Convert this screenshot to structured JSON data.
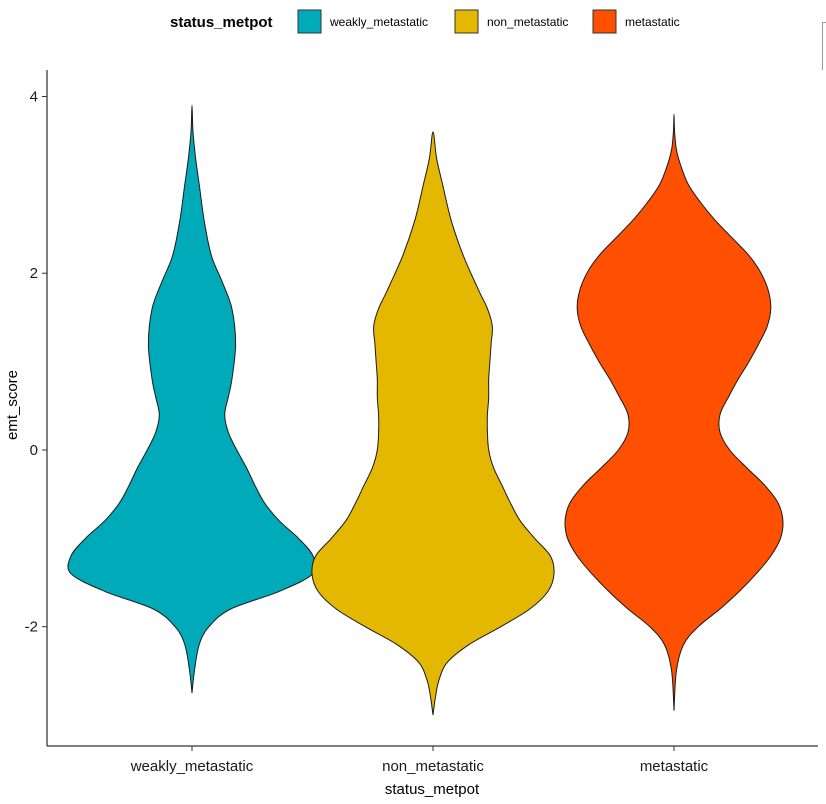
{
  "chart_data": {
    "type": "violin",
    "xlabel": "status_metpot",
    "ylabel": "emt_score",
    "ylim": [
      -3.35,
      4.3
    ],
    "yticks": [
      -2,
      0,
      2,
      4
    ],
    "categories": [
      "weakly_metastatic",
      "non_metastatic",
      "metastatic"
    ],
    "legend": {
      "title": "status_metpot",
      "position": "top",
      "items": [
        {
          "label": "weakly_metastatic",
          "color": "#00AAB9"
        },
        {
          "label": "non_metastatic",
          "color": "#E4B800"
        },
        {
          "label": "metastatic",
          "color": "#FF4F00"
        }
      ]
    },
    "grid": false,
    "series": [
      {
        "name": "weakly_metastatic",
        "color": "#00AAB9",
        "range": [
          -2.75,
          3.9
        ],
        "density_halfwidth": [
          [
            -2.75,
            0.0
          ],
          [
            -2.5,
            0.02
          ],
          [
            -2.2,
            0.06
          ],
          [
            -2.0,
            0.14
          ],
          [
            -1.8,
            0.32
          ],
          [
            -1.6,
            0.72
          ],
          [
            -1.4,
            1.0
          ],
          [
            -1.2,
            1.0
          ],
          [
            -1.0,
            0.88
          ],
          [
            -0.8,
            0.72
          ],
          [
            -0.6,
            0.6
          ],
          [
            -0.4,
            0.52
          ],
          [
            -0.2,
            0.45
          ],
          [
            0.0,
            0.37
          ],
          [
            0.2,
            0.3
          ],
          [
            0.4,
            0.27
          ],
          [
            0.6,
            0.3
          ],
          [
            0.8,
            0.33
          ],
          [
            1.2,
            0.36
          ],
          [
            1.6,
            0.33
          ],
          [
            1.9,
            0.25
          ],
          [
            2.2,
            0.16
          ],
          [
            2.6,
            0.1
          ],
          [
            3.0,
            0.06
          ],
          [
            3.3,
            0.03
          ],
          [
            3.6,
            0.008
          ],
          [
            3.9,
            0.0
          ]
        ]
      },
      {
        "name": "non_metastatic",
        "color": "#E4B800",
        "range": [
          -3.0,
          3.6
        ],
        "density_halfwidth": [
          [
            -3.0,
            0.0
          ],
          [
            -2.8,
            0.02
          ],
          [
            -2.6,
            0.05
          ],
          [
            -2.4,
            0.12
          ],
          [
            -2.2,
            0.3
          ],
          [
            -2.0,
            0.56
          ],
          [
            -1.8,
            0.8
          ],
          [
            -1.6,
            0.95
          ],
          [
            -1.4,
            1.0
          ],
          [
            -1.2,
            0.97
          ],
          [
            -1.0,
            0.84
          ],
          [
            -0.8,
            0.72
          ],
          [
            -0.6,
            0.64
          ],
          [
            -0.4,
            0.57
          ],
          [
            -0.2,
            0.5
          ],
          [
            0.0,
            0.46
          ],
          [
            0.2,
            0.45
          ],
          [
            0.4,
            0.45
          ],
          [
            0.6,
            0.46
          ],
          [
            0.8,
            0.46
          ],
          [
            1.0,
            0.47
          ],
          [
            1.2,
            0.48
          ],
          [
            1.4,
            0.49
          ],
          [
            1.6,
            0.45
          ],
          [
            1.8,
            0.38
          ],
          [
            2.2,
            0.25
          ],
          [
            2.6,
            0.15
          ],
          [
            3.0,
            0.08
          ],
          [
            3.3,
            0.03
          ],
          [
            3.6,
            0.0
          ]
        ]
      },
      {
        "name": "metastatic",
        "color": "#FF4F00",
        "range": [
          -2.95,
          3.8
        ],
        "density_halfwidth": [
          [
            -2.95,
            0.0
          ],
          [
            -2.5,
            0.02
          ],
          [
            -2.2,
            0.08
          ],
          [
            -2.0,
            0.2
          ],
          [
            -1.8,
            0.38
          ],
          [
            -1.6,
            0.54
          ],
          [
            -1.4,
            0.68
          ],
          [
            -1.2,
            0.8
          ],
          [
            -1.0,
            0.88
          ],
          [
            -0.8,
            0.9
          ],
          [
            -0.6,
            0.86
          ],
          [
            -0.4,
            0.75
          ],
          [
            -0.2,
            0.6
          ],
          [
            0.0,
            0.46
          ],
          [
            0.2,
            0.38
          ],
          [
            0.4,
            0.38
          ],
          [
            0.6,
            0.45
          ],
          [
            0.8,
            0.53
          ],
          [
            1.0,
            0.62
          ],
          [
            1.2,
            0.7
          ],
          [
            1.4,
            0.77
          ],
          [
            1.6,
            0.8
          ],
          [
            1.8,
            0.78
          ],
          [
            2.0,
            0.72
          ],
          [
            2.2,
            0.62
          ],
          [
            2.4,
            0.48
          ],
          [
            2.6,
            0.34
          ],
          [
            2.8,
            0.22
          ],
          [
            3.0,
            0.12
          ],
          [
            3.2,
            0.06
          ],
          [
            3.4,
            0.02
          ],
          [
            3.6,
            0.005
          ],
          [
            3.8,
            0.0
          ]
        ]
      }
    ]
  }
}
